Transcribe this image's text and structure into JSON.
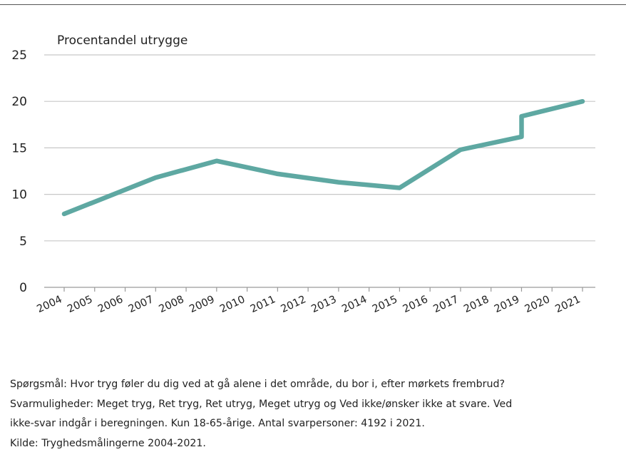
{
  "chart_data": {
    "type": "line",
    "ylabel": "Procentandel utrygge",
    "xlabel": "",
    "ylim": [
      0,
      25
    ],
    "yticks": [
      0,
      5,
      10,
      15,
      20,
      25
    ],
    "categories": [
      "2004",
      "2005",
      "2006",
      "2007",
      "2008",
      "2009",
      "2010",
      "2011",
      "2012",
      "2013",
      "2014",
      "2015",
      "2016",
      "2017",
      "2018",
      "2019",
      "2020",
      "2021"
    ],
    "grid": "horizontal",
    "line_color": "#5ea8a2",
    "series": [
      {
        "points": [
          {
            "x": "2004",
            "y": 7.9
          },
          {
            "x": "2007",
            "y": 11.8
          },
          {
            "x": "2009",
            "y": 13.6
          },
          {
            "x": "2011",
            "y": 12.2
          },
          {
            "x": "2013",
            "y": 11.3
          },
          {
            "x": "2015",
            "y": 10.7
          },
          {
            "x": "2017",
            "y": 14.8
          },
          {
            "x": "2019",
            "y": 16.2
          },
          {
            "x": "2019",
            "y": 18.4
          },
          {
            "x": "2021",
            "y": 20.0
          }
        ]
      }
    ]
  },
  "footnote": {
    "line1": "Spørgsmål: Hvor tryg føler du dig ved at gå alene i det område, du bor i, efter mørkets frembrud?",
    "line2": "Svarmuligheder: Meget tryg, Ret tryg, Ret utryg, Meget utryg og Ved ikke/ønsker ikke at svare. Ved",
    "line3": "ikke-svar indgår i beregningen. Kun 18-65-årige. Antal svarpersoner: 4192 i 2021.",
    "line4": "Kilde: Tryghedsmålingerne 2004-2021."
  }
}
